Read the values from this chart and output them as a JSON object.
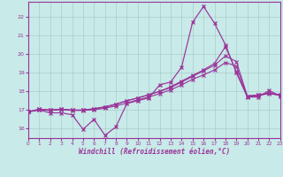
{
  "xlabel": "Windchill (Refroidissement éolien,°C)",
  "background_color": "#c8eae8",
  "grid_color": "#aacccc",
  "line_color": "#993399",
  "xlim": [
    0,
    23
  ],
  "ylim": [
    15.5,
    22.8
  ],
  "yticks": [
    16,
    17,
    18,
    19,
    20,
    21,
    22
  ],
  "xticks": [
    0,
    1,
    2,
    3,
    4,
    5,
    6,
    7,
    8,
    9,
    10,
    11,
    12,
    13,
    14,
    15,
    16,
    17,
    18,
    19,
    20,
    21,
    22,
    23
  ],
  "hours": [
    0,
    1,
    2,
    3,
    4,
    5,
    6,
    7,
    8,
    9,
    10,
    11,
    12,
    13,
    14,
    15,
    16,
    17,
    18,
    19,
    20,
    21,
    22,
    23
  ],
  "line1": [
    16.9,
    17.0,
    16.85,
    16.85,
    16.75,
    15.97,
    16.5,
    15.65,
    16.1,
    17.35,
    17.5,
    17.65,
    18.35,
    18.5,
    19.3,
    21.7,
    22.55,
    21.65,
    20.5,
    19.0,
    17.7,
    17.7,
    18.05,
    17.75
  ],
  "line2": [
    16.9,
    17.05,
    17.0,
    17.05,
    17.0,
    17.0,
    17.05,
    17.15,
    17.3,
    17.5,
    17.65,
    17.82,
    18.0,
    18.25,
    18.55,
    18.85,
    19.15,
    19.5,
    20.4,
    19.05,
    17.75,
    17.8,
    17.9,
    17.8
  ],
  "line3": [
    16.9,
    17.05,
    17.0,
    17.05,
    17.0,
    17.0,
    17.08,
    17.18,
    17.32,
    17.5,
    17.65,
    17.82,
    18.0,
    18.2,
    18.5,
    18.8,
    19.1,
    19.4,
    19.9,
    19.6,
    17.75,
    17.82,
    17.92,
    17.82
  ],
  "line4": [
    16.9,
    17.02,
    16.98,
    17.02,
    16.98,
    16.98,
    17.02,
    17.1,
    17.22,
    17.38,
    17.55,
    17.7,
    17.88,
    18.08,
    18.35,
    18.65,
    18.88,
    19.15,
    19.55,
    19.35,
    17.72,
    17.78,
    17.88,
    17.78
  ]
}
